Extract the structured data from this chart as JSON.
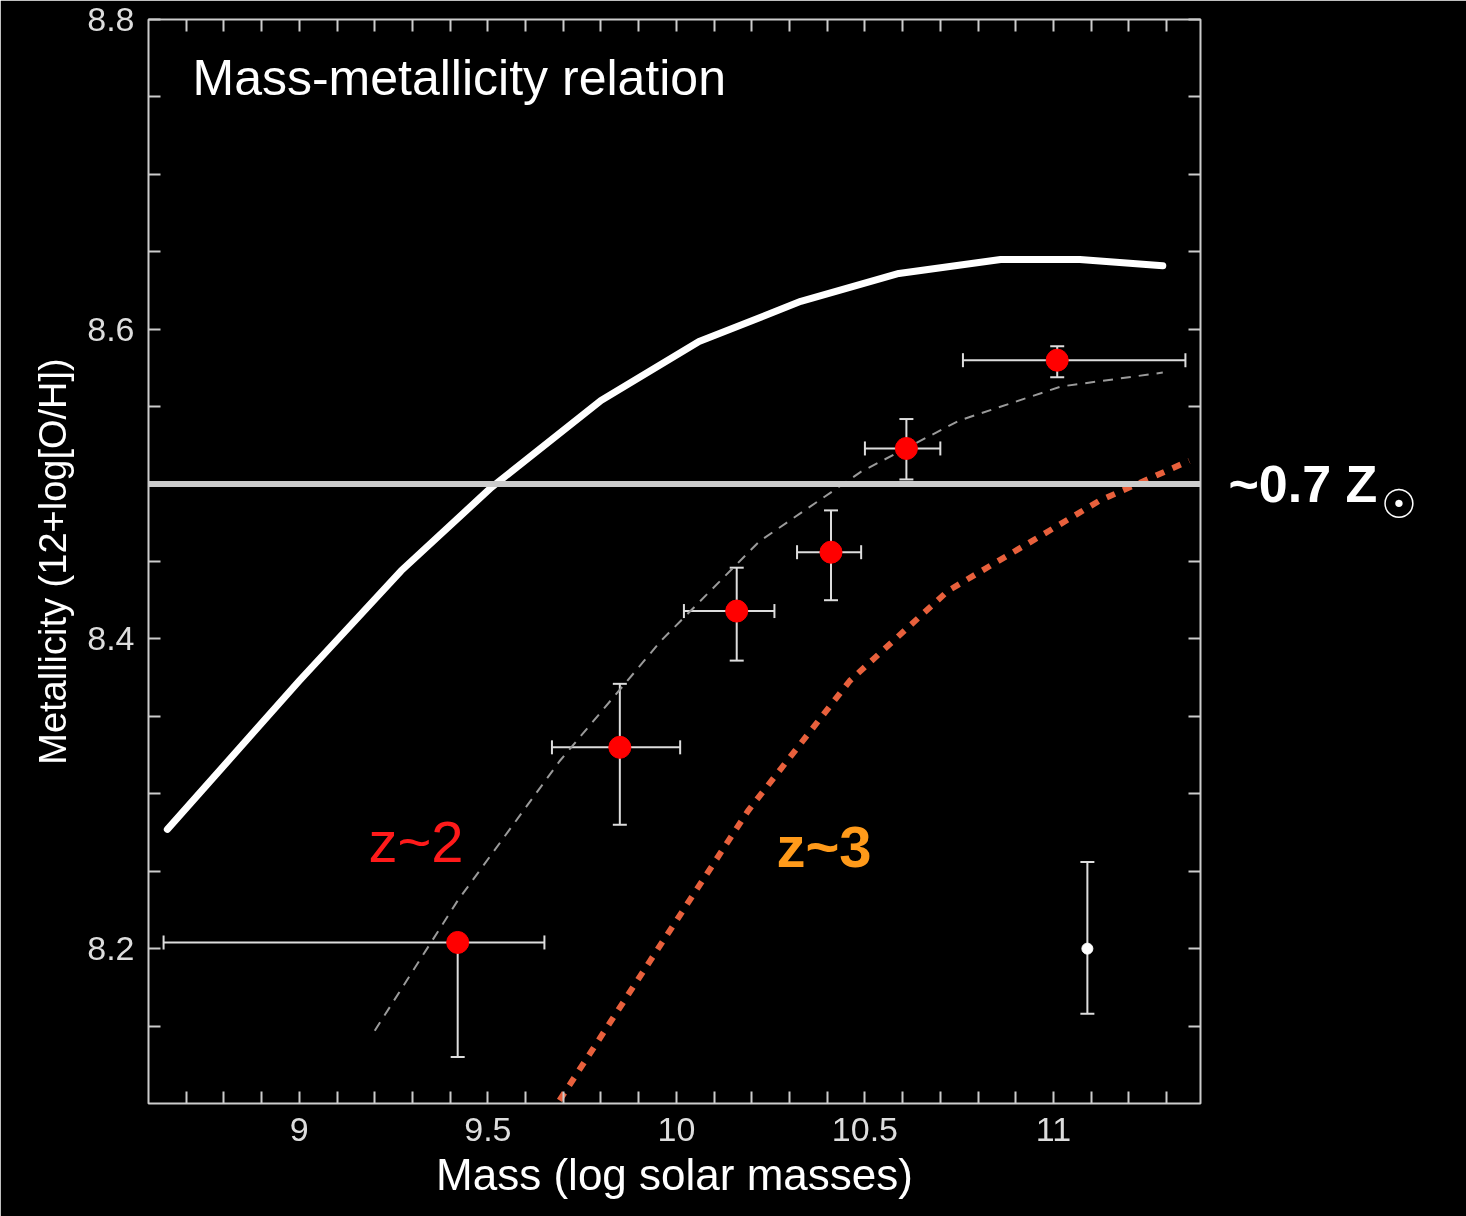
{
  "chart_data": {
    "type": "scatter",
    "title": "Mass-metallicity relation",
    "xlabel": "Mass (log solar masses)",
    "ylabel": "Metallicity (12+log[O/H])",
    "xlim": [
      8.6,
      11.39
    ],
    "ylim": [
      8.1,
      8.8
    ],
    "xticks": [
      {
        "value": 8.7,
        "label": null
      },
      {
        "value": 8.8,
        "label": null
      },
      {
        "value": 8.9,
        "label": null
      },
      9,
      {
        "value": 9.1,
        "label": null
      },
      {
        "value": 9.2,
        "label": null
      },
      {
        "value": 9.3,
        "label": null
      },
      {
        "value": 9.4,
        "label": null
      },
      9.5,
      {
        "value": 9.6,
        "label": null
      },
      {
        "value": 9.7,
        "label": null
      },
      {
        "value": 9.8,
        "label": null
      },
      {
        "value": 9.9,
        "label": null
      },
      10,
      {
        "value": 10.1,
        "label": null
      },
      {
        "value": 10.2,
        "label": null
      },
      {
        "value": 10.3,
        "label": null
      },
      {
        "value": 10.4,
        "label": null
      },
      10.5,
      {
        "value": 10.6,
        "label": null
      },
      {
        "value": 10.7,
        "label": null
      },
      {
        "value": 10.8,
        "label": null
      },
      {
        "value": 10.9,
        "label": null
      },
      11,
      {
        "value": 11.1,
        "label": null
      },
      {
        "value": 11.2,
        "label": null
      },
      {
        "value": 11.3,
        "label": null
      }
    ],
    "yticks": [
      {
        "value": 8.15,
        "label": null
      },
      8.2,
      {
        "value": 8.25,
        "label": null
      },
      {
        "value": 8.3,
        "label": null
      },
      {
        "value": 8.35,
        "label": null
      },
      8.4,
      {
        "value": 8.45,
        "label": null
      },
      {
        "value": 8.5,
        "label": null
      },
      {
        "value": 8.55,
        "label": null
      },
      8.6,
      {
        "value": 8.65,
        "label": null
      },
      {
        "value": 8.7,
        "label": null
      },
      {
        "value": 8.75,
        "label": null
      },
      8.8
    ],
    "grid": false,
    "marker": "circle",
    "series": [
      {
        "type": "line",
        "marker": "none",
        "color": "#ffffff",
        "line_style": "solid",
        "x": [
          8.65,
          9.0,
          9.27,
          9.51,
          9.8,
          10.06,
          10.33,
          10.59,
          10.86,
          11.07,
          11.29
        ],
        "values": [
          8.277,
          8.373,
          8.444,
          8.498,
          8.554,
          8.592,
          8.618,
          8.636,
          8.645,
          8.645,
          8.641
        ]
      },
      {
        "type": "line",
        "marker": "none",
        "color": "#9a9a9a",
        "line_style": "dashed",
        "x": [
          9.2,
          9.42,
          9.69,
          9.96,
          10.22,
          10.49,
          10.75,
          11.02,
          11.29
        ],
        "values": [
          8.147,
          8.231,
          8.321,
          8.399,
          8.463,
          8.508,
          8.541,
          8.563,
          8.572
        ]
      },
      {
        "type": "line",
        "marker": "none",
        "color": "#e8603c",
        "line_style": "dotted",
        "x": [
          9.69,
          9.93,
          10.19,
          10.46,
          10.72,
          10.99,
          11.12,
          11.36
        ],
        "values": [
          8.102,
          8.192,
          8.289,
          8.373,
          8.431,
          8.47,
          8.489,
          8.515
        ]
      },
      {
        "color": "#ff0000",
        "x": [
          9.42,
          9.85,
          10.16,
          10.41,
          10.61,
          11.01
        ],
        "values": [
          8.204,
          8.33,
          8.418,
          8.456,
          8.523,
          8.58
        ],
        "errors": [
          [
            8.13,
            8.204
          ],
          [
            8.28,
            8.371
          ],
          [
            8.386,
            8.446
          ],
          [
            8.425,
            8.483
          ],
          [
            8.503,
            8.542
          ],
          [
            8.569,
            8.589
          ]
        ],
        "xerrors": [
          [
            8.64,
            9.65
          ],
          [
            9.67,
            10.01
          ],
          [
            10.02,
            10.26
          ],
          [
            10.32,
            10.49
          ],
          [
            10.5,
            10.7
          ],
          [
            10.76,
            11.35
          ]
        ]
      },
      {
        "color": "#ffffff",
        "x": [
          11.09
        ],
        "values": [
          8.2
        ],
        "errors": [
          [
            8.158,
            8.256
          ]
        ]
      }
    ],
    "ref_lines": [
      {
        "axis": "y",
        "value": 8.5,
        "label": "~0.7 Z$_{☉}$",
        "color": "#cccccc"
      }
    ],
    "annotations": [
      "z~2",
      "z~3"
    ]
  }
}
